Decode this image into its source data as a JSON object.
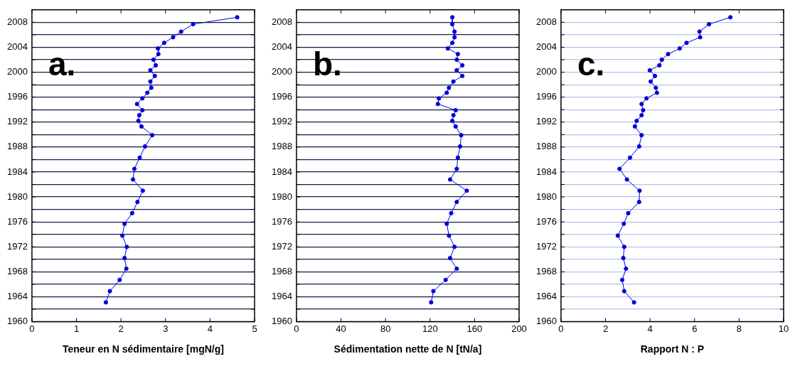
{
  "chart_data": [
    {
      "type": "line",
      "xlabel": "Teneur en N sédimentaire [mgN/g]",
      "annotations": [
        "a."
      ],
      "marker": "circle",
      "grid": "y",
      "xlim": [
        0,
        5
      ],
      "xticks": [
        0,
        1,
        2,
        3,
        4,
        5
      ],
      "ylim": [
        1960,
        2010
      ],
      "yticks": [
        1960,
        {
          "value": 1962,
          "label": null
        },
        1964,
        {
          "value": 1966,
          "label": null
        },
        1968,
        {
          "value": 1970,
          "label": null
        },
        1972,
        {
          "value": 1974,
          "label": null
        },
        1976,
        {
          "value": 1978,
          "label": null
        },
        1980,
        {
          "value": 1982,
          "label": null
        },
        1984,
        {
          "value": 1986,
          "label": null
        },
        1988,
        {
          "value": 1990,
          "label": null
        },
        1992,
        {
          "value": 1994,
          "label": null
        },
        1996,
        {
          "value": 1998,
          "label": null
        },
        2000,
        {
          "value": 2002,
          "label": null
        },
        2004,
        {
          "value": 2006,
          "label": null
        },
        2008
      ],
      "series": [
        {
          "color": "#0000dd",
          "x": [
            4.61,
            3.62,
            3.35,
            3.17,
            2.97,
            2.83,
            2.84,
            2.73,
            2.78,
            2.66,
            2.76,
            2.66,
            2.68,
            2.59,
            2.48,
            2.36,
            2.48,
            2.41,
            2.39,
            2.46,
            2.7,
            2.54,
            2.42,
            2.3,
            2.27,
            2.49,
            2.37,
            2.25,
            2.08,
            2.03,
            2.13,
            2.08,
            2.12,
            1.97,
            1.75,
            1.66
          ],
          "values": [
            2008.8,
            2007.7,
            2006.5,
            2005.6,
            2004.7,
            2003.8,
            2002.9,
            2002.0,
            2001.1,
            2000.3,
            1999.4,
            1998.5,
            1997.5,
            1996.7,
            1995.8,
            1994.9,
            1993.9,
            1993.1,
            1992.2,
            1991.3,
            1989.9,
            1988.1,
            1986.3,
            1984.5,
            1982.8,
            1981.0,
            1979.2,
            1977.4,
            1975.7,
            1973.8,
            1972.0,
            1970.2,
            1968.5,
            1966.7,
            1964.9,
            1963.1
          ]
        }
      ]
    },
    {
      "type": "line",
      "xlabel": "Sédimentation nette de N [tN/a]",
      "annotations": [
        "b."
      ],
      "marker": "circle",
      "grid": "y",
      "xlim": [
        0,
        200
      ],
      "xticks": [
        0,
        40,
        80,
        120,
        160,
        200
      ],
      "ylim": [
        1960,
        2010
      ],
      "yticks": [
        1960,
        {
          "value": 1962,
          "label": null
        },
        1964,
        {
          "value": 1966,
          "label": null
        },
        1968,
        {
          "value": 1970,
          "label": null
        },
        1972,
        {
          "value": 1974,
          "label": null
        },
        1976,
        {
          "value": 1978,
          "label": null
        },
        1980,
        {
          "value": 1982,
          "label": null
        },
        1984,
        {
          "value": 1986,
          "label": null
        },
        1988,
        {
          "value": 1990,
          "label": null
        },
        1992,
        {
          "value": 1994,
          "label": null
        },
        1996,
        {
          "value": 1998,
          "label": null
        },
        2000,
        {
          "value": 2002,
          "label": null
        },
        2004,
        {
          "value": 2006,
          "label": null
        },
        2008
      ],
      "series": [
        {
          "color": "#0000dd",
          "x": [
            140,
            140,
            142,
            142,
            140,
            136,
            145,
            144,
            149,
            144,
            149,
            141,
            137,
            135,
            128,
            127,
            143,
            141,
            140,
            143,
            148,
            147,
            145,
            144,
            138,
            153,
            144,
            139,
            135,
            137,
            142,
            138,
            144,
            134,
            123,
            121
          ],
          "values": [
            2008.8,
            2007.7,
            2006.5,
            2005.6,
            2004.7,
            2003.8,
            2002.9,
            2002.0,
            2001.1,
            2000.3,
            1999.4,
            1998.5,
            1997.5,
            1996.7,
            1995.8,
            1994.9,
            1993.9,
            1993.1,
            1992.2,
            1991.3,
            1989.9,
            1988.1,
            1986.3,
            1984.5,
            1982.8,
            1981.0,
            1979.2,
            1977.4,
            1975.7,
            1973.8,
            1972.0,
            1970.2,
            1968.5,
            1966.7,
            1964.9,
            1963.1
          ]
        }
      ]
    },
    {
      "type": "line",
      "xlabel": "Rapport N : P",
      "annotations": [
        "c."
      ],
      "marker": "circle",
      "grid": "y",
      "xlim": [
        0,
        10
      ],
      "xticks": [
        0,
        2,
        4,
        6,
        8,
        10
      ],
      "ylim": [
        1960,
        2010
      ],
      "yticks": [
        1960,
        {
          "value": 1962,
          "label": null
        },
        1964,
        {
          "value": 1966,
          "label": null
        },
        1968,
        {
          "value": 1970,
          "label": null
        },
        1972,
        {
          "value": 1974,
          "label": null
        },
        1976,
        {
          "value": 1978,
          "label": null
        },
        1980,
        {
          "value": 1982,
          "label": null
        },
        1984,
        {
          "value": 1986,
          "label": null
        },
        1988,
        {
          "value": 1990,
          "label": null
        },
        1992,
        {
          "value": 1994,
          "label": null
        },
        1996,
        {
          "value": 1998,
          "label": null
        },
        2000,
        {
          "value": 2002,
          "label": null
        },
        2004,
        {
          "value": 2006,
          "label": null
        },
        2008
      ],
      "series": [
        {
          "color": "#0000dd",
          "x": [
            7.61,
            6.65,
            6.22,
            6.25,
            5.64,
            5.33,
            4.81,
            4.53,
            4.42,
            3.99,
            4.22,
            4.03,
            4.26,
            4.31,
            3.84,
            3.62,
            3.69,
            3.62,
            3.4,
            3.32,
            3.62,
            3.51,
            3.1,
            2.63,
            2.96,
            3.53,
            3.51,
            3.02,
            2.82,
            2.55,
            2.84,
            2.8,
            2.92,
            2.75,
            2.84,
            3.28
          ],
          "values": [
            2008.8,
            2007.7,
            2006.5,
            2005.6,
            2004.7,
            2003.8,
            2002.9,
            2002.0,
            2001.1,
            2000.3,
            1999.4,
            1998.5,
            1997.5,
            1996.7,
            1995.8,
            1994.9,
            1993.9,
            1993.1,
            1992.2,
            1991.3,
            1989.9,
            1988.1,
            1986.3,
            1984.5,
            1982.8,
            1981.0,
            1979.2,
            1977.4,
            1975.7,
            1973.8,
            1972.0,
            1970.2,
            1968.5,
            1966.7,
            1964.9,
            1963.1
          ]
        }
      ]
    }
  ]
}
